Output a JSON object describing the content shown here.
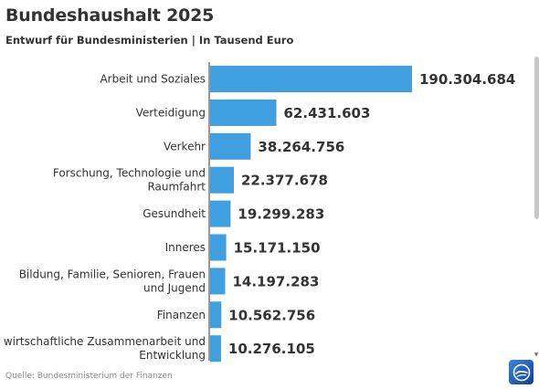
{
  "header": {
    "title": "Bundeshaushalt 2025",
    "subtitle": "Entwurf für Bundesministerien | In Tausend Euro"
  },
  "footer": {
    "source": "Quelle: Bundesministerium der Finanzen"
  },
  "colors": {
    "bar": "#3f9fdf",
    "axis": "#333333",
    "text": "#333333"
  },
  "icons": {
    "logo": "tagesschau-logo-icon",
    "scroll": "scrollbar"
  },
  "chart_data": {
    "type": "bar",
    "orientation": "horizontal",
    "title": "Bundeshaushalt 2025",
    "subtitle": "Entwurf für Bundesministerien | In Tausend Euro",
    "categories": [
      [
        "Arbeit und Soziales"
      ],
      [
        "Verteidigung"
      ],
      [
        "Verkehr"
      ],
      [
        "Forschung, Technologie und",
        "Raumfahrt"
      ],
      [
        "Gesundheit"
      ],
      [
        "Inneres"
      ],
      [
        "Bildung, Familie, Senioren, Frauen",
        "und Jugend"
      ],
      [
        "Finanzen"
      ],
      [
        "wirtschaftliche Zusammenarbeit und",
        "Entwicklung"
      ]
    ],
    "values": [
      190304684,
      62431603,
      38264756,
      22377678,
      19299283,
      15171150,
      14197283,
      10562756,
      10276105
    ],
    "value_labels": [
      "190.304.684",
      "62.431.603",
      "38.264.756",
      "22.377.678",
      "19.299.283",
      "15.171.150",
      "14.197.283",
      "10.562.756",
      "10.276.105"
    ],
    "xlim": [
      0,
      190304684
    ],
    "grid": false,
    "legend": "none"
  }
}
